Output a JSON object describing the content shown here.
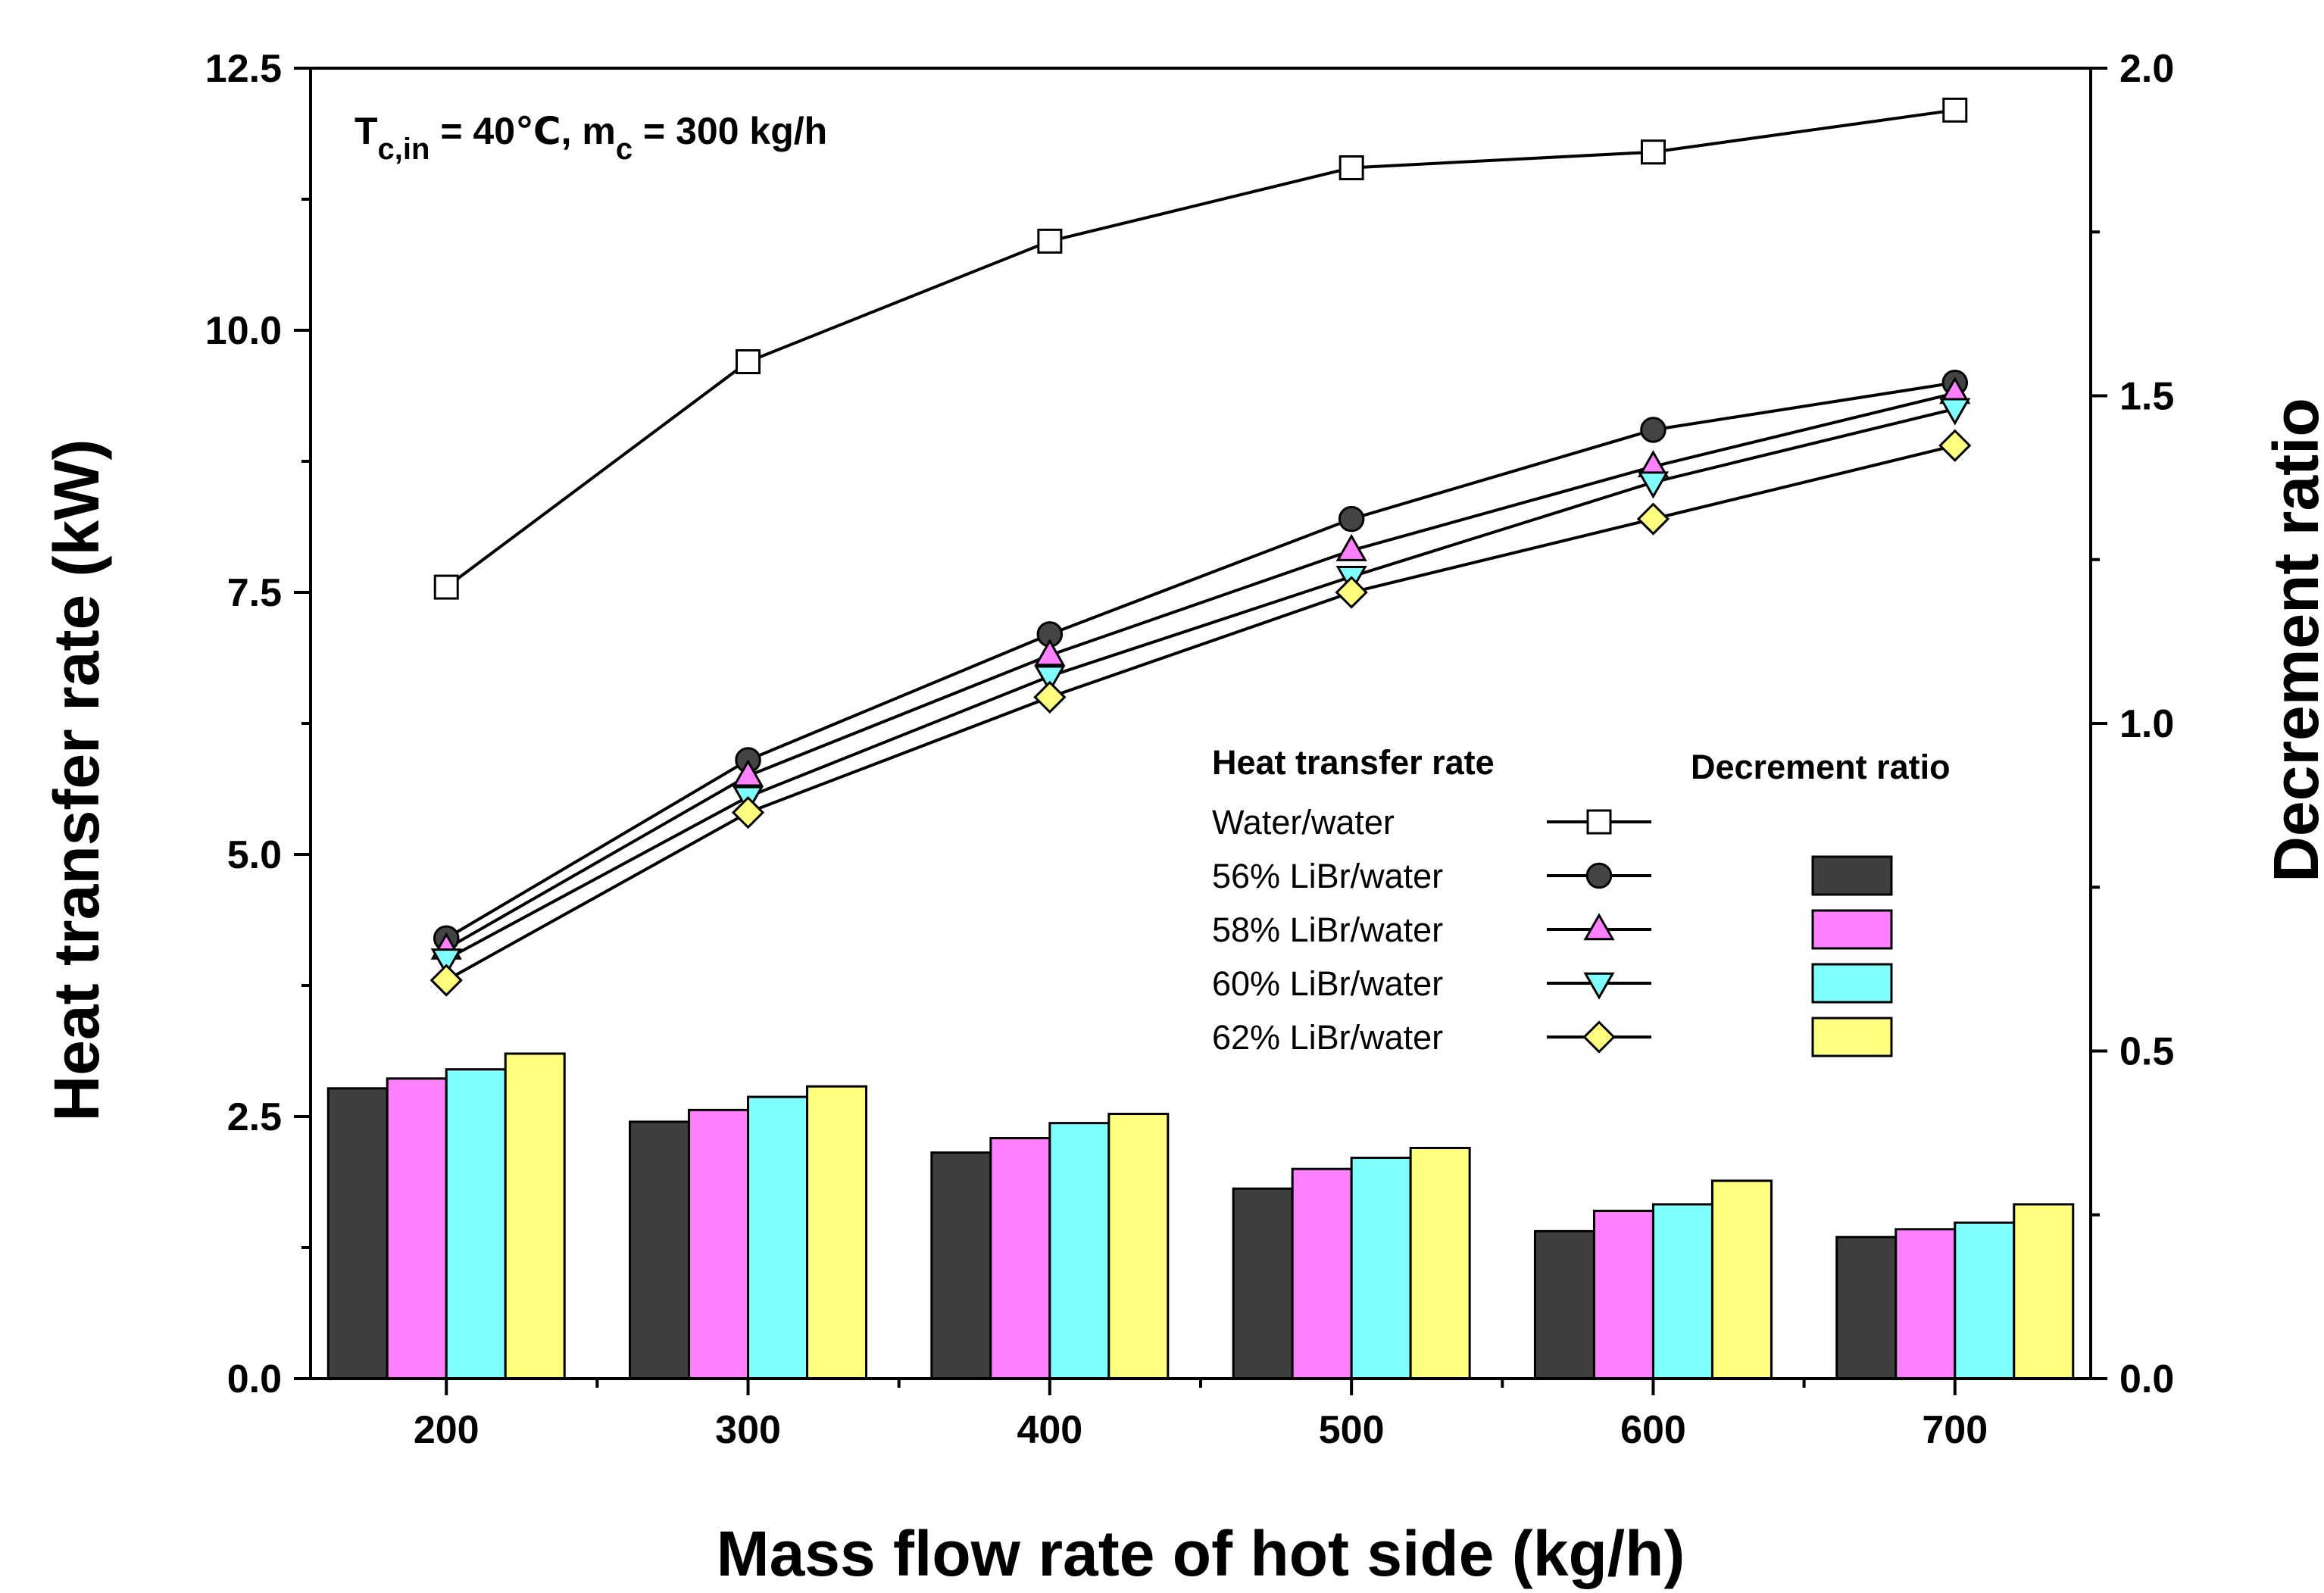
{
  "chart_data": {
    "type": "bar+line",
    "annotation": {
      "t_symbol": "T",
      "t_subscript": "c,in",
      "t_value": " = 40℃, m",
      "m_subscript": "c",
      "m_value": " = 300 kg/h"
    },
    "xlabel": "Mass flow rate of hot side (kg/h)",
    "ylabel_left": "Heat transfer rate (kW)",
    "ylabel_right": "Decrement ratio",
    "categories": [
      "200",
      "300",
      "400",
      "500",
      "600",
      "700"
    ],
    "x": [
      200,
      300,
      400,
      500,
      600,
      700
    ],
    "xlim": [
      155,
      745
    ],
    "ylim_left": [
      0,
      12.5
    ],
    "ylim_right": [
      0,
      2.0
    ],
    "yticks_left": [
      "0.0",
      "2.5",
      "5.0",
      "7.5",
      "10.0",
      "12.5"
    ],
    "yticks_left_values": [
      0,
      2.5,
      5,
      7.5,
      10,
      12.5
    ],
    "yticks_right": [
      "0.0",
      "0.5",
      "1.0",
      "1.5",
      "2.0"
    ],
    "yticks_right_values": [
      0,
      0.5,
      1.0,
      1.5,
      2.0
    ],
    "line_series": [
      {
        "name": "Water/water",
        "marker": "square",
        "color": "#ffffff",
        "values": [
          7.55,
          9.7,
          10.85,
          11.55,
          11.7,
          12.1
        ]
      },
      {
        "name": "56% LiBr/water",
        "marker": "circle",
        "color": "#444444",
        "values": [
          4.2,
          5.9,
          7.1,
          8.2,
          9.05,
          9.5
        ]
      },
      {
        "name": "58% LiBr/water",
        "marker": "triangle-up",
        "color": "#ff80ff",
        "values": [
          4.1,
          5.75,
          6.9,
          7.9,
          8.7,
          9.4
        ]
      },
      {
        "name": "60% LiBr/water",
        "marker": "triangle-down",
        "color": "#80ffff",
        "values": [
          4.0,
          5.55,
          6.7,
          7.65,
          8.55,
          9.25
        ]
      },
      {
        "name": "62% LiBr/water",
        "marker": "diamond",
        "color": "#ffff80",
        "values": [
          3.8,
          5.4,
          6.5,
          7.5,
          8.2,
          8.9
        ]
      }
    ],
    "bar_series": [
      {
        "name": "56% LiBr/water",
        "color": "#3f3f3f",
        "values": [
          0.443,
          0.392,
          0.345,
          0.29,
          0.225,
          0.216
        ]
      },
      {
        "name": "58% LiBr/water",
        "color": "#ff80ff",
        "values": [
          0.458,
          0.41,
          0.367,
          0.32,
          0.256,
          0.228
        ]
      },
      {
        "name": "60% LiBr/water",
        "color": "#80ffff",
        "values": [
          0.472,
          0.43,
          0.39,
          0.337,
          0.266,
          0.238
        ]
      },
      {
        "name": "62% LiBr/water",
        "color": "#ffff80",
        "values": [
          0.496,
          0.446,
          0.404,
          0.352,
          0.302,
          0.266
        ]
      }
    ],
    "legend": {
      "heading_lines": "Heat transfer rate",
      "heading_bars": "Decrement ratio",
      "placement": "center-right"
    }
  }
}
